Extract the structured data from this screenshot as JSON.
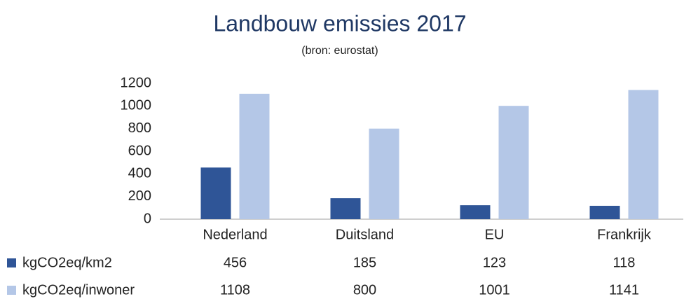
{
  "chart_data": {
    "type": "bar",
    "title": "Landbouw emissies 2017",
    "subtitle": "(bron: eurostat)",
    "categories": [
      "Nederland",
      "Duitsland",
      "EU",
      "Frankrijk"
    ],
    "series": [
      {
        "name": "kgCO2eq/km2",
        "color": "#2f5597",
        "values": [
          456,
          185,
          123,
          118
        ]
      },
      {
        "name": "kgCO2eq/inwoner",
        "color": "#b4c7e7",
        "values": [
          1108,
          800,
          1001,
          1141
        ]
      }
    ],
    "ylim": [
      0,
      1200
    ],
    "yticks": [
      0,
      200,
      400,
      600,
      800,
      1000,
      1200
    ],
    "grid": false
  }
}
